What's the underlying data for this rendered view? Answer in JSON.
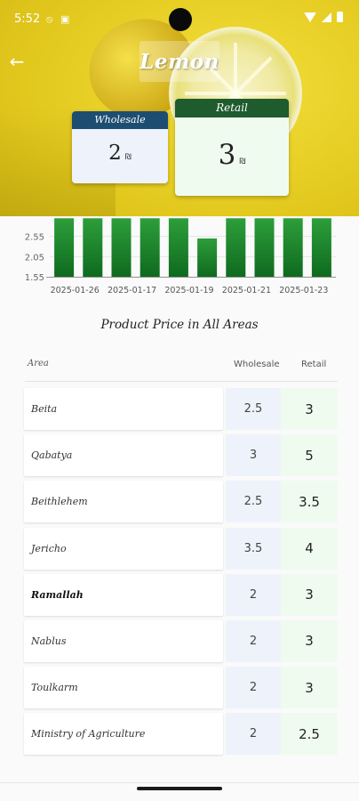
{
  "status_bar": {
    "time": "5:52"
  },
  "app_bar": {
    "title": "Lemon"
  },
  "cards": {
    "wholesale": {
      "label": "Wholesale",
      "value": "2",
      "currency": "₪"
    },
    "retail": {
      "label": "Retail",
      "value": "3",
      "currency": "₪"
    }
  },
  "chart_data": {
    "type": "bar",
    "categories": [
      "2025-01-26",
      "",
      "2025-01-17",
      "",
      "2025-01-19",
      "",
      "2025-01-21",
      "",
      "2025-01-23",
      ""
    ],
    "values": [
      3,
      3,
      3,
      3,
      3,
      2.5,
      3,
      3,
      3,
      3
    ],
    "y_ticks": [
      "2.55",
      "2.05",
      "1.55"
    ],
    "ylim": [
      1.55,
      3.05
    ],
    "colors": {
      "bar_top": "#2d9e3a",
      "bar_bottom": "#0f6a1f"
    }
  },
  "table": {
    "title": "Product Price in All Areas",
    "headers": {
      "area": "Area",
      "wholesale": "Wholesale",
      "retail": "Retail"
    },
    "rows": [
      {
        "area": "Beita",
        "wholesale": "2.5",
        "retail": "3"
      },
      {
        "area": "Qabatya",
        "wholesale": "3",
        "retail": "5"
      },
      {
        "area": "Beithlehem",
        "wholesale": "2.5",
        "retail": "3.5"
      },
      {
        "area": "Jericho",
        "wholesale": "3.5",
        "retail": "4"
      },
      {
        "area": "Ramallah",
        "wholesale": "2",
        "retail": "3"
      },
      {
        "area": "Nablus",
        "wholesale": "2",
        "retail": "3"
      },
      {
        "area": "Toulkarm",
        "wholesale": "2",
        "retail": "3"
      },
      {
        "area": "Ministry of Agriculture",
        "wholesale": "2",
        "retail": "2.5"
      }
    ]
  },
  "colors": {
    "wholesale_header": "#1d4e72",
    "retail_header": "#1e5b2d",
    "wholesale_cell": "#eef3fb",
    "retail_cell": "#f0fbf0"
  }
}
